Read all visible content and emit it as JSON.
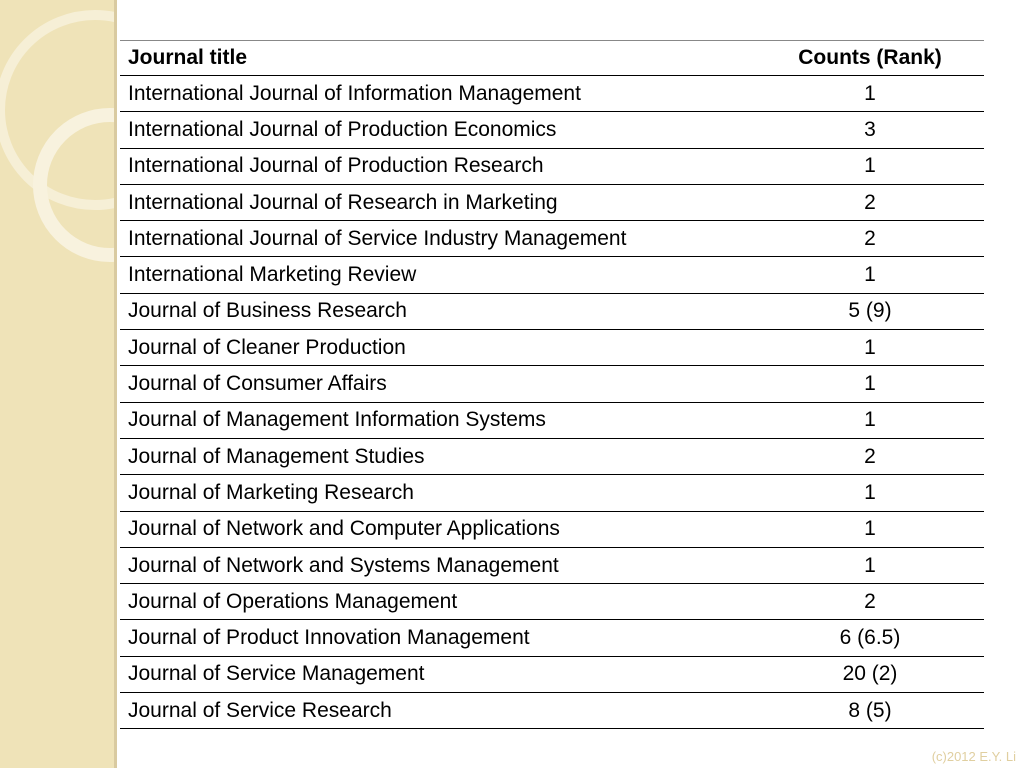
{
  "table": {
    "header": [
      "Journal title",
      "Counts (Rank)"
    ],
    "rows": [
      [
        "International Journal of Information Management",
        "1"
      ],
      [
        "International Journal of Production Economics",
        "3"
      ],
      [
        "International Journal of Production Research",
        "1"
      ],
      [
        "International Journal of Research in Marketing",
        "2"
      ],
      [
        "International Journal of Service Industry Management",
        "2"
      ],
      [
        "International Marketing Review",
        "1"
      ],
      [
        "Journal of Business Research",
        "5 (9)"
      ],
      [
        "Journal of Cleaner Production",
        "1"
      ],
      [
        "Journal of Consumer Affairs",
        "1"
      ],
      [
        "Journal of Management Information Systems",
        "1"
      ],
      [
        "Journal of Management Studies",
        "2"
      ],
      [
        "Journal of Marketing Research",
        "1"
      ],
      [
        "Journal of Network and Computer Applications",
        "1"
      ],
      [
        "Journal of Network and Systems Management",
        "1"
      ],
      [
        "Journal of Operations Management",
        "2"
      ],
      [
        "Journal of Product Innovation Management",
        "6 (6.5)"
      ],
      [
        "Journal of Service Management",
        "20 (2)"
      ],
      [
        "Journal of Service Research",
        "8 (5)"
      ]
    ]
  },
  "footer": "(c)2012 E.Y. Li"
}
